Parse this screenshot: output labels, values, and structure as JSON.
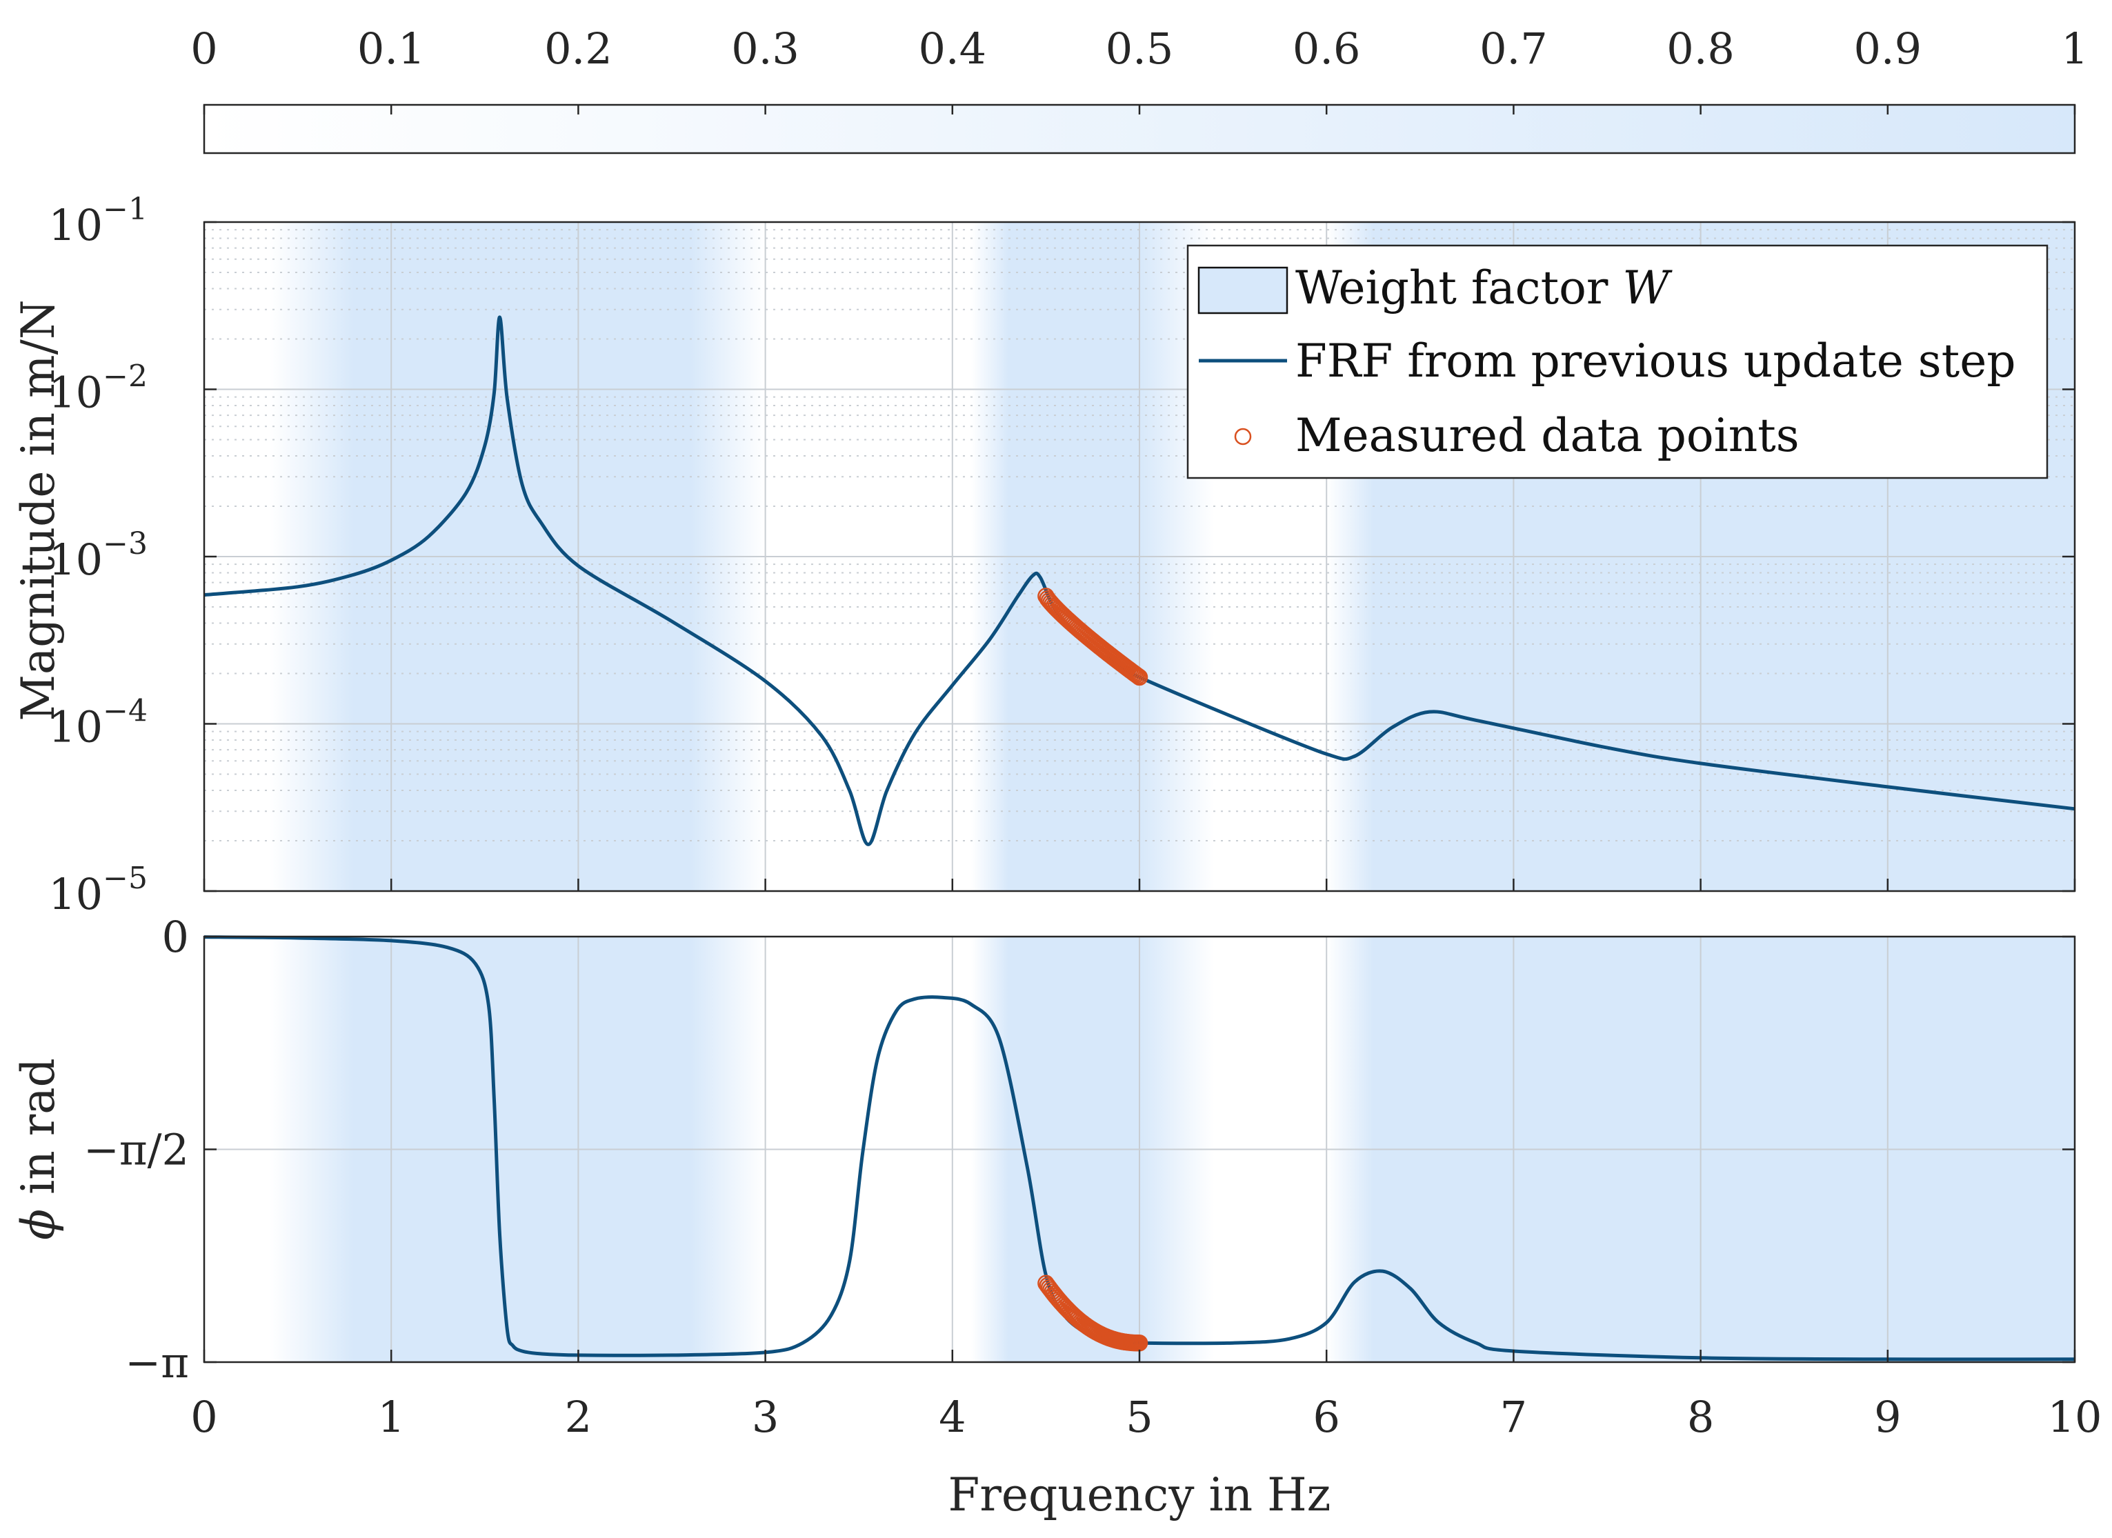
{
  "chart_data": [
    {
      "type": "colorbar",
      "name": "Weight factor colorbar",
      "ticks": [
        "0",
        "0.1",
        "0.2",
        "0.3",
        "0.4",
        "0.5",
        "0.6",
        "0.7",
        "0.8",
        "0.9",
        "1"
      ],
      "range": [
        0,
        1
      ],
      "colormap": [
        "#ffffff",
        "#d7e8fa"
      ]
    },
    {
      "type": "line",
      "name": "Magnitude",
      "yscale": "log",
      "ylabel": "Magnitude in m/N",
      "ylim": [
        1e-05,
        0.1
      ],
      "xlim": [
        0,
        10
      ],
      "yticks": [
        {
          "base": "10",
          "exp": "−1"
        },
        {
          "base": "10",
          "exp": "−2"
        },
        {
          "base": "10",
          "exp": "−3"
        },
        {
          "base": "10",
          "exp": "−4"
        },
        {
          "base": "10",
          "exp": "−5"
        }
      ],
      "legend": {
        "position": "top-right",
        "entries": [
          {
            "label_main": "Weight factor ",
            "label_italic": "W",
            "kind": "patch"
          },
          {
            "label_main": "FRF from previous update step",
            "label_italic": "",
            "kind": "line"
          },
          {
            "label_main": "Measured data points",
            "label_italic": "",
            "kind": "marker"
          }
        ]
      },
      "series": [
        {
          "name": "FRF from previous update step",
          "x": [
            0,
            0.5,
            0.8,
            1.0,
            1.2,
            1.4,
            1.5,
            1.55,
            1.58,
            1.62,
            1.7,
            1.8,
            2.0,
            2.5,
            3.0,
            3.3,
            3.45,
            3.55,
            3.65,
            3.8,
            4.0,
            4.2,
            4.35,
            4.43,
            4.47,
            4.55,
            4.7,
            4.9,
            5.0,
            5.5,
            6.0,
            6.15,
            6.35,
            6.55,
            6.8,
            7.5,
            8.0,
            9.0,
            10.0
          ],
          "y": [
            0.00059,
            0.00066,
            0.00078,
            0.00095,
            0.00132,
            0.0024,
            0.0046,
            0.0095,
            0.027,
            0.0088,
            0.0027,
            0.0016,
            0.00088,
            0.00041,
            0.00018,
            8.5e-05,
            4e-05,
            1.9e-05,
            4e-05,
            8.8e-05,
            0.00017,
            0.00032,
            0.00058,
            0.00077,
            0.00075,
            0.00048,
            0.00031,
            0.00022,
            0.00019,
            0.00011,
            6.6e-05,
            6.4e-05,
            9.5e-05,
            0.000118,
            0.000105,
            7.2e-05,
            5.8e-05,
            4.2e-05,
            3.1e-05
          ]
        },
        {
          "name": "Measured data points",
          "x_start": 4.5,
          "x_end": 5.0,
          "count": 60,
          "y_start": 0.00058,
          "y_end": 0.00019
        }
      ]
    },
    {
      "type": "line",
      "name": "Phase",
      "ylabel_symbol": "ϕ",
      "ylabel": " in rad",
      "ylim": [
        -3.14159,
        0
      ],
      "xlim": [
        0,
        10
      ],
      "yticks": [
        "0",
        "−π/2",
        "−π"
      ],
      "xticks": [
        "0",
        "1",
        "2",
        "3",
        "4",
        "5",
        "6",
        "7",
        "8",
        "9",
        "10"
      ],
      "xlabel": "Frequency in Hz",
      "series": [
        {
          "name": "FRF from previous update step",
          "x": [
            0,
            0.5,
            1.0,
            1.3,
            1.45,
            1.52,
            1.55,
            1.58,
            1.62,
            1.65,
            1.7,
            1.8,
            2.0,
            2.5,
            3.0,
            3.2,
            3.35,
            3.45,
            3.52,
            3.6,
            3.7,
            3.8,
            3.95,
            4.1,
            4.25,
            4.4,
            4.5,
            4.6,
            4.75,
            4.9,
            5.0,
            5.5,
            5.8,
            6.0,
            6.15,
            6.3,
            6.45,
            6.6,
            6.8,
            7.0,
            8.0,
            9.0,
            10.0
          ],
          "y": [
            -0.003,
            -0.01,
            -0.03,
            -0.08,
            -0.2,
            -0.5,
            -1.2,
            -2.2,
            -2.9,
            -3.02,
            -3.06,
            -3.08,
            -3.09,
            -3.09,
            -3.07,
            -3.0,
            -2.8,
            -2.4,
            -1.6,
            -0.9,
            -0.55,
            -0.46,
            -0.45,
            -0.5,
            -0.75,
            -1.7,
            -2.5,
            -2.8,
            -2.95,
            -2.99,
            -3.0,
            -3.0,
            -2.97,
            -2.85,
            -2.55,
            -2.47,
            -2.6,
            -2.85,
            -3.0,
            -3.06,
            -3.11,
            -3.12,
            -3.12
          ]
        },
        {
          "name": "Measured data points",
          "x_start": 4.5,
          "x_end": 5.0,
          "count": 60,
          "y_start": -2.56,
          "y_end": -3.0
        }
      ]
    }
  ],
  "weight_profile": {
    "x": [
      0,
      0.35,
      0.8,
      1.0,
      2.0,
      2.6,
      3.0,
      3.6,
      4.1,
      4.3,
      5.0,
      5.4,
      6.0,
      6.25,
      10.0
    ],
    "w": [
      0.0,
      0.0,
      1.0,
      1.0,
      1.0,
      1.0,
      0.0,
      0.0,
      0.0,
      1.0,
      1.0,
      0.0,
      0.0,
      1.0,
      1.0
    ]
  }
}
